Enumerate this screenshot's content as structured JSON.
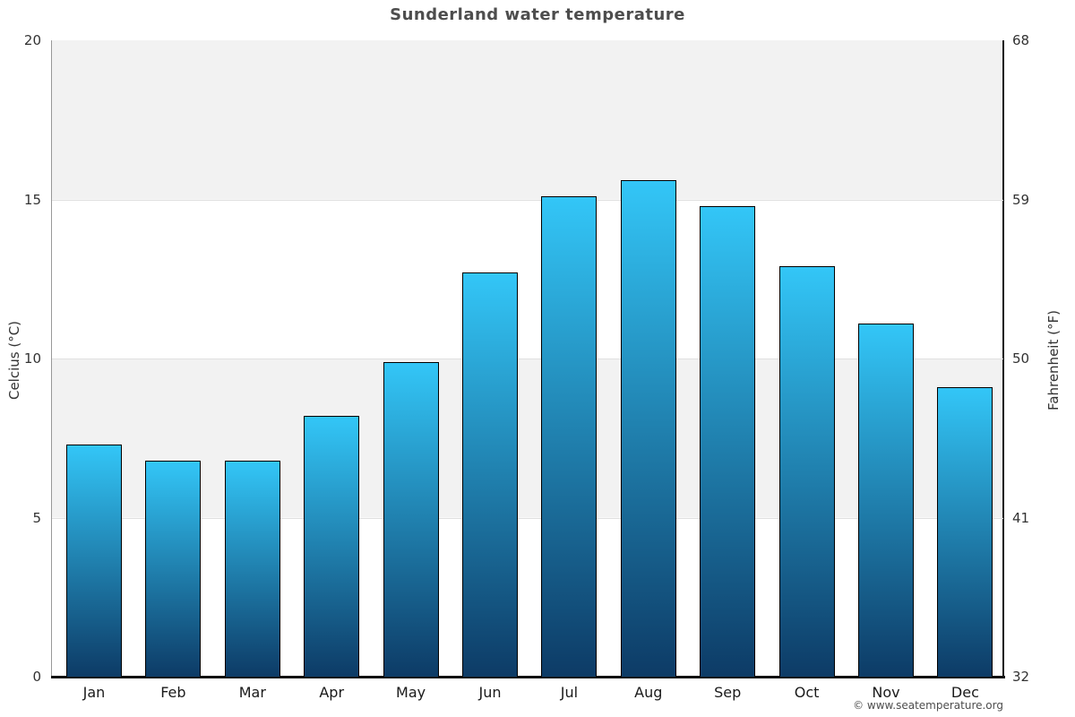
{
  "title": "Sunderland water temperature",
  "copyright": "© www.seatemperature.org",
  "y_axis_left": {
    "label": "Celcius (°C)",
    "ticks": [
      0,
      5,
      10,
      15,
      20
    ]
  },
  "y_axis_right": {
    "label": "Fahrenheit (°F)",
    "ticks": [
      32,
      41,
      50,
      59,
      68
    ]
  },
  "chart_data": {
    "type": "bar",
    "title": "Sunderland water temperature",
    "categories": [
      "Jan",
      "Feb",
      "Mar",
      "Apr",
      "May",
      "Jun",
      "Jul",
      "Aug",
      "Sep",
      "Oct",
      "Nov",
      "Dec"
    ],
    "values": [
      7.3,
      6.8,
      6.8,
      8.2,
      9.9,
      12.7,
      15.1,
      15.6,
      14.8,
      12.9,
      11.1,
      9.1
    ],
    "unit": "°C",
    "xlabel": "",
    "ylabel": "Celcius (°C)",
    "ylabel_right": "Fahrenheit (°F)",
    "ylim": [
      0,
      20
    ],
    "yticks": [
      0,
      5,
      10,
      15,
      20
    ],
    "y2lim": [
      32,
      68
    ],
    "y2ticks": [
      32,
      41,
      50,
      59,
      68
    ],
    "grid": "alternating-horizontal-bands",
    "legend": false,
    "colors": {
      "bar_gradient_top": "#33c6f7",
      "bar_gradient_bottom": "#0d3b66",
      "bar_border": "#000000",
      "band_gray": "#f2f2f2",
      "band_white": "#ffffff",
      "gridline": "#e0e0e0",
      "axis_left_line": "#999999",
      "axis_dark_line": "#111111",
      "title_color": "#4d4d4d"
    }
  }
}
